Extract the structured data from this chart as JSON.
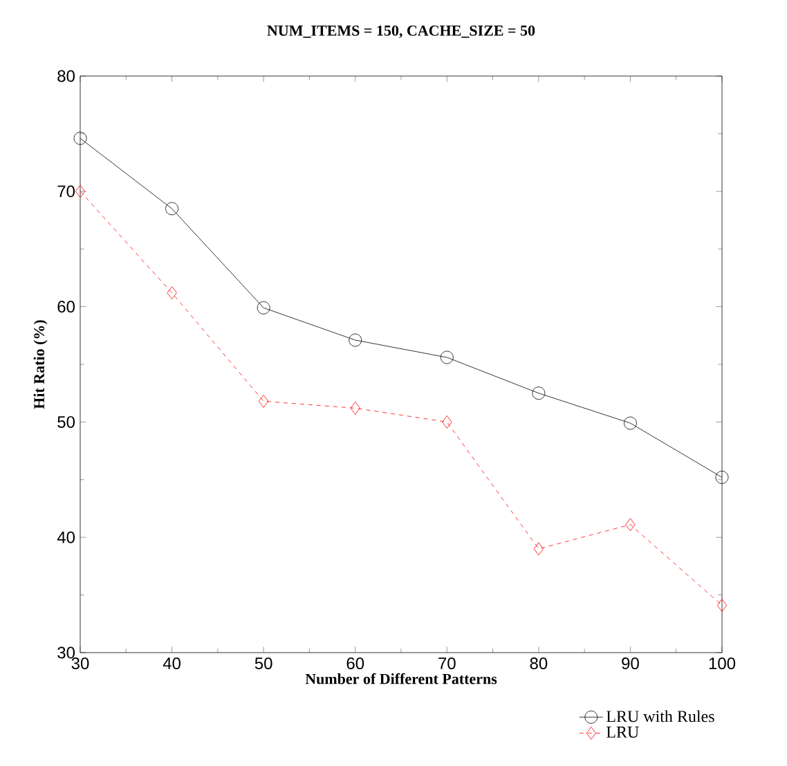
{
  "chart_data": {
    "type": "line",
    "title": "NUM_ITEMS = 150, CACHE_SIZE = 50",
    "xlabel": "Number of Different Patterns",
    "ylabel": "Hit Ratio  (%)",
    "x": [
      30,
      40,
      50,
      60,
      70,
      80,
      90,
      100
    ],
    "series": [
      {
        "name": "LRU with Rules",
        "color": "#000000",
        "marker": "circle",
        "line_style": "solid",
        "values": [
          74.6,
          68.5,
          59.9,
          57.1,
          55.6,
          52.5,
          49.9,
          45.2
        ]
      },
      {
        "name": "LRU",
        "color": "#ff0000",
        "marker": "diamond",
        "line_style": "dashed",
        "values": [
          70,
          61.2,
          51.8,
          51.2,
          50,
          39,
          41.1,
          34.1
        ]
      }
    ],
    "xlim": [
      30,
      100
    ],
    "xticks": [
      30,
      40,
      50,
      60,
      70,
      80,
      90,
      100
    ],
    "ylim": [
      30,
      80
    ],
    "yticks": [
      30,
      40,
      50,
      60,
      70,
      80
    ],
    "grid": false,
    "legend": "bottom right"
  }
}
